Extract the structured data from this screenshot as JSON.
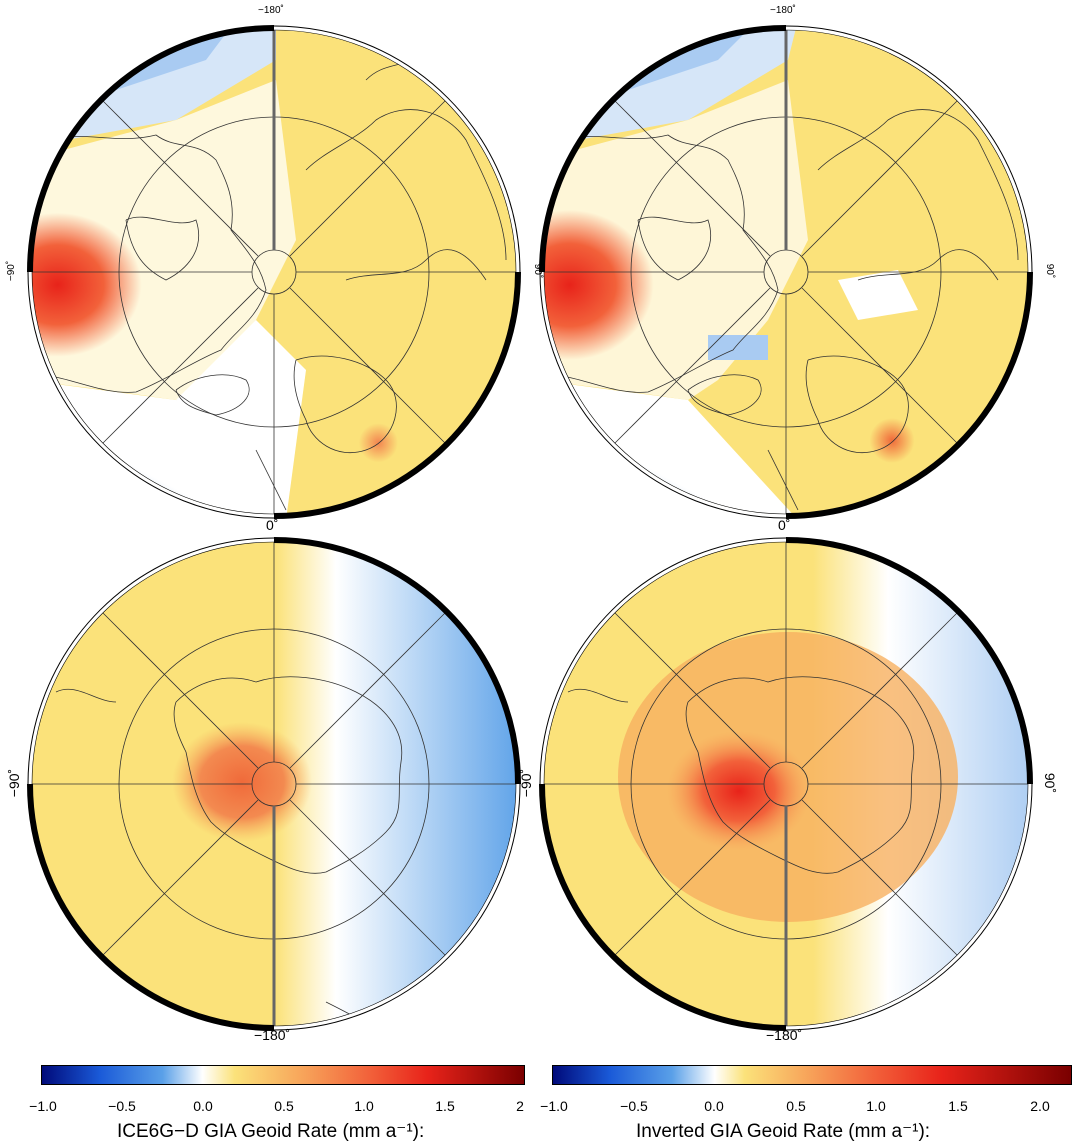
{
  "panels": [
    {
      "id": "north-ice6g",
      "top_label": "−180˚",
      "bottom_label": "0˚",
      "left_label": "−90˚",
      "right_label": "90˚"
    },
    {
      "id": "north-inverted",
      "top_label": "−180˚",
      "bottom_label": "0˚",
      "left_label": "",
      "right_label": "90˚"
    },
    {
      "id": "south-ice6g",
      "top_label": "",
      "bottom_label": "−180˚",
      "left_label": "−90˚",
      "right_label": ""
    },
    {
      "id": "south-inverted",
      "top_label": "",
      "bottom_label": "−180˚",
      "left_label": "−90˚",
      "right_label": "90˚"
    }
  ],
  "colorbars": [
    {
      "id": "ice6g",
      "title": "ICE6G−D GIA Geoid Rate (mm a⁻¹):",
      "ticks": [
        "−1.0",
        "−0.5",
        "0.0",
        "0.5",
        "1.0",
        "1.5",
        "2"
      ],
      "range": [
        -1.0,
        2.0
      ]
    },
    {
      "id": "inverted",
      "title": "Inverted GIA Geoid Rate (mm a⁻¹):",
      "ticks": [
        "−1.0",
        "−0.5",
        "0.0",
        "0.5",
        "1.0",
        "1.5",
        "2.0"
      ],
      "range": [
        -1.0,
        2.2
      ]
    }
  ],
  "colors": {
    "negative": "#5aa0e8",
    "zero": "#ffffff",
    "positive_low": "#fbe27a",
    "positive_high": "#e8231a",
    "max": "#7a0000",
    "min": "#000a7a"
  }
}
